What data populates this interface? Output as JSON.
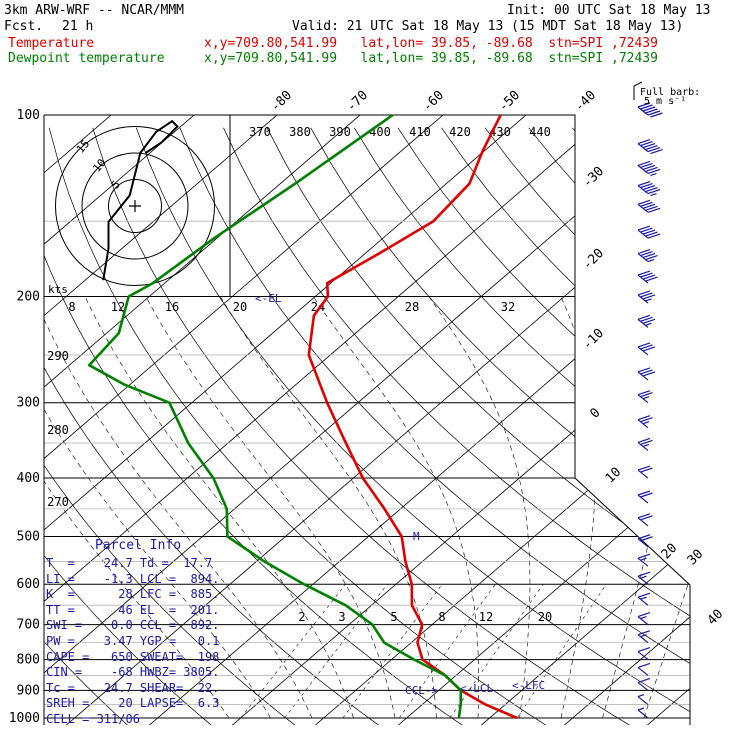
{
  "header": {
    "model": "3km ARW-WRF -- NCAR/MMM",
    "fcst_label": "Fcst.",
    "fcst_value": "21 h",
    "init": "Init: 00 UTC Sat 18 May 13",
    "valid": "Valid: 21 UTC Sat 18 May 13 (15 MDT Sat 18 May 13)",
    "temp_label": "Temperature",
    "dew_label": "Dewpoint temperature",
    "point_info": "x,y=709.80,541.99   lat,lon= 39.85, -89.68  stn=SPI ,72439",
    "temp_color": "#e00000",
    "dew_color": "#008000"
  },
  "barb_legend": {
    "line1": "Full barb:",
    "line2": "5 m s⁻¹"
  },
  "hodograph": {
    "units": "kts",
    "ring_labels": [
      "5",
      "10",
      "15"
    ]
  },
  "chart_data": {
    "type": "line",
    "pressure_levels": [
      100,
      200,
      300,
      400,
      500,
      600,
      700,
      800,
      900,
      1000
    ],
    "isotherm_top_labels": [
      "-80",
      "-70",
      "-60",
      "-50",
      "-40"
    ],
    "isotherm_right_labels": [
      "-30",
      "-20",
      "-10",
      "0",
      "10",
      "20",
      "30",
      "40"
    ],
    "theta_labels_top": [
      "370",
      "380",
      "390",
      "400",
      "410",
      "420",
      "430",
      "440"
    ],
    "theta_labels_left": [
      "290",
      "280",
      "270"
    ],
    "mixing_labels_upper": [
      "8",
      "12",
      "16",
      "20",
      "24",
      "28",
      "32"
    ],
    "mixing_labels_lower": [
      "2",
      "3",
      "5",
      "8",
      "12",
      "20"
    ],
    "markers": {
      "el": "<-EL",
      "m": "M",
      "ccl": "CCL->",
      "lcl": "<-LCL",
      "lfc": "<-LFC"
    },
    "series": [
      {
        "name": "Temperature",
        "color": "#e00000",
        "points": [
          [
            100,
            -63
          ],
          [
            115,
            -60
          ],
          [
            130,
            -57
          ],
          [
            150,
            -56
          ],
          [
            170,
            -58
          ],
          [
            190,
            -60
          ],
          [
            200,
            -58
          ],
          [
            215,
            -57
          ],
          [
            250,
            -52
          ],
          [
            300,
            -43
          ],
          [
            350,
            -35
          ],
          [
            400,
            -28
          ],
          [
            450,
            -21
          ],
          [
            500,
            -15
          ],
          [
            550,
            -11
          ],
          [
            600,
            -7
          ],
          [
            650,
            -4
          ],
          [
            700,
            0
          ],
          [
            750,
            2
          ],
          [
            800,
            5
          ],
          [
            850,
            10
          ],
          [
            900,
            14
          ],
          [
            950,
            19
          ],
          [
            1000,
            24.7
          ]
        ]
      },
      {
        "name": "Dewpoint temperature",
        "color": "#008000",
        "points": [
          [
            100,
            -76
          ],
          [
            130,
            -78
          ],
          [
            160,
            -80
          ],
          [
            190,
            -81
          ],
          [
            200,
            -82
          ],
          [
            230,
            -78
          ],
          [
            260,
            -77
          ],
          [
            280,
            -70
          ],
          [
            300,
            -62
          ],
          [
            350,
            -54
          ],
          [
            400,
            -46
          ],
          [
            450,
            -40
          ],
          [
            500,
            -36
          ],
          [
            550,
            -28
          ],
          [
            600,
            -20
          ],
          [
            650,
            -12
          ],
          [
            700,
            -6
          ],
          [
            750,
            -2
          ],
          [
            800,
            4
          ],
          [
            850,
            10
          ],
          [
            900,
            14
          ],
          [
            950,
            16
          ],
          [
            1000,
            17.7
          ]
        ]
      }
    ],
    "wind_barbs": [
      {
        "p": 100,
        "spd": 60
      },
      {
        "p": 115,
        "spd": 60
      },
      {
        "p": 125,
        "spd": 55
      },
      {
        "p": 135,
        "spd": 55
      },
      {
        "p": 145,
        "spd": 50
      },
      {
        "p": 160,
        "spd": 50
      },
      {
        "p": 175,
        "spd": 45
      },
      {
        "p": 190,
        "spd": 40
      },
      {
        "p": 205,
        "spd": 35
      },
      {
        "p": 225,
        "spd": 35
      },
      {
        "p": 250,
        "spd": 30
      },
      {
        "p": 275,
        "spd": 30
      },
      {
        "p": 300,
        "spd": 25
      },
      {
        "p": 330,
        "spd": 25
      },
      {
        "p": 360,
        "spd": 25
      },
      {
        "p": 400,
        "spd": 20
      },
      {
        "p": 440,
        "spd": 20
      },
      {
        "p": 480,
        "spd": 20
      },
      {
        "p": 520,
        "spd": 20
      },
      {
        "p": 560,
        "spd": 15
      },
      {
        "p": 600,
        "spd": 15
      },
      {
        "p": 650,
        "spd": 15
      },
      {
        "p": 700,
        "spd": 15
      },
      {
        "p": 750,
        "spd": 15
      },
      {
        "p": 800,
        "spd": 10
      },
      {
        "p": 850,
        "spd": 10
      },
      {
        "p": 900,
        "spd": 10
      },
      {
        "p": 950,
        "spd": 5
      },
      {
        "p": 1000,
        "spd": 5
      }
    ],
    "hodograph_points": [
      [
        -6,
        14
      ],
      [
        -5,
        8
      ],
      [
        -5,
        3
      ],
      [
        -1,
        -2
      ],
      [
        1,
        -10
      ],
      [
        4,
        -14
      ],
      [
        7,
        -16
      ],
      [
        8,
        -15
      ],
      [
        5,
        -12
      ],
      [
        2,
        -10
      ]
    ]
  },
  "parcel_info": {
    "title": "Parcel Info",
    "rows": [
      "T  =    24.7 Td =  17.7",
      "LI =    -1.3 LCL =  894.",
      "K  =      28 LFC =  885.",
      "TT =      46 EL  =  201.",
      "SWI =    0.0 CCL =  892.",
      "PW =    3.47 YGP =   0.1",
      "CAPE =   650 SWEAT=  198",
      "CIN =    -68 HWBZ= 3805.",
      "Tc =    24.7 SHEAR=  22.",
      "SREH =    20 LAPSE=  6.3",
      "CELL = 311/06"
    ]
  }
}
